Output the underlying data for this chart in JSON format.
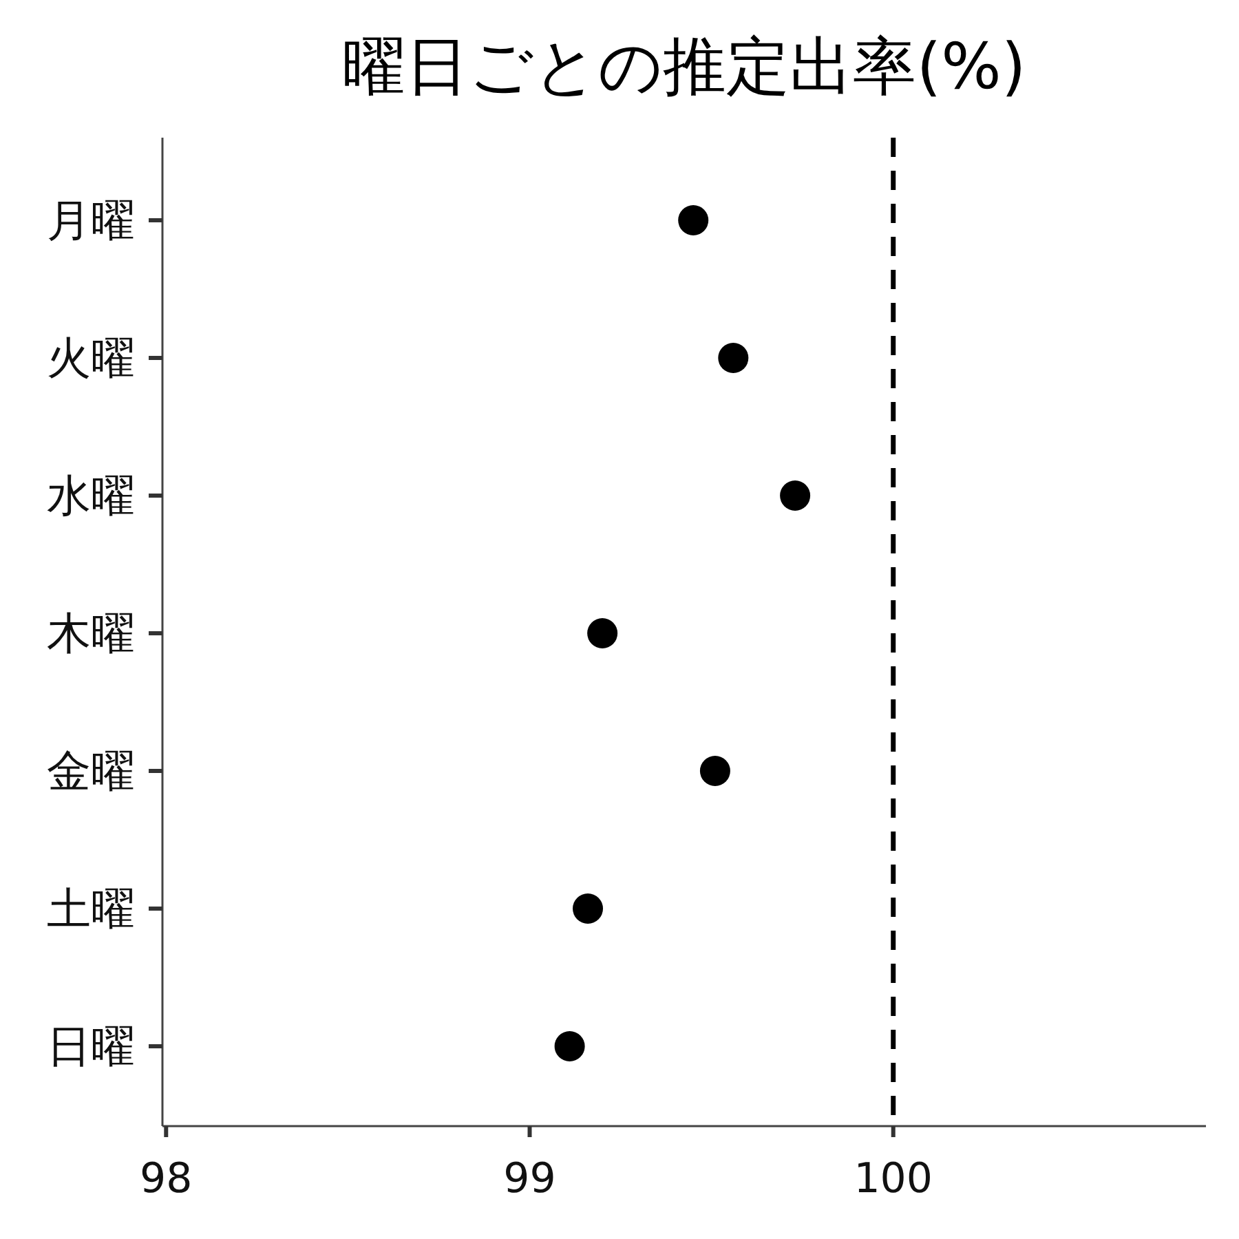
{
  "chart_data": {
    "type": "scatter",
    "title": "曜日ごとの推定出率(%)",
    "orientation": "horizontal",
    "categories": [
      "月曜",
      "火曜",
      "水曜",
      "木曜",
      "金曜",
      "土曜",
      "日曜"
    ],
    "values": [
      99.45,
      99.56,
      99.73,
      99.2,
      99.51,
      99.16,
      99.11
    ],
    "color": "#000000",
    "marker": "circle",
    "xlim": [
      97.99,
      100.86
    ],
    "xticks": [
      98,
      99,
      100
    ],
    "ref_lines": [
      {
        "axis": "x",
        "value": 100,
        "color": "#000000",
        "line_style": "dashed"
      }
    ]
  }
}
